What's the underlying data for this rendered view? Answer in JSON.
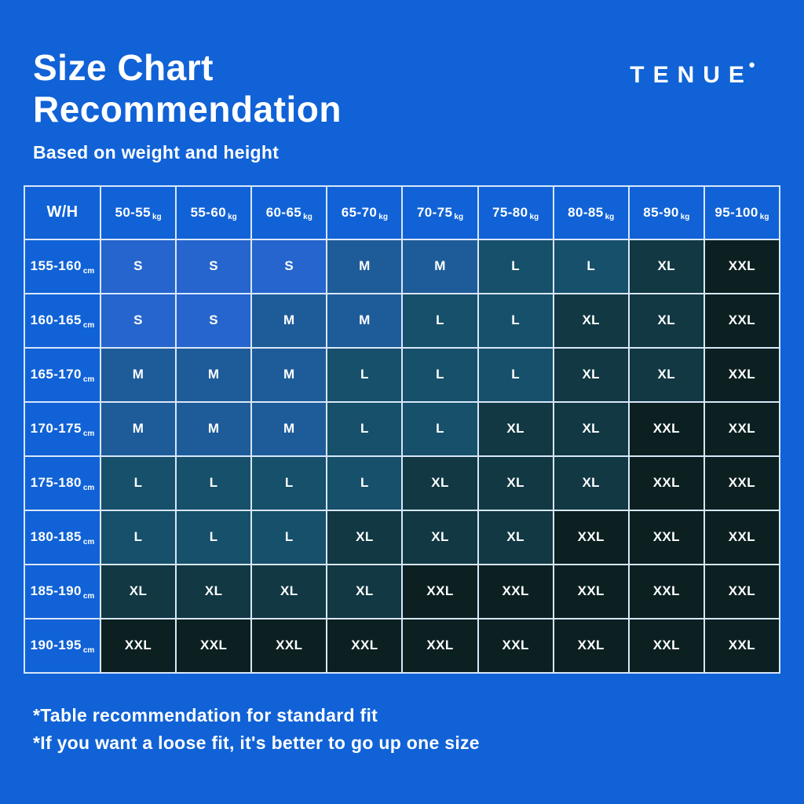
{
  "page": {
    "title_line1": "Size Chart",
    "title_line2": "Recommendation",
    "subtitle": "Based on weight and height",
    "brand": "TENUE",
    "brand_dot": "●",
    "notes": [
      "*Table recommendation for standard fit",
      "*If you want a loose fit, it's better to go up one size"
    ]
  },
  "colors": {
    "background": "#1062d6",
    "text": "#ffffff",
    "border": "#d9e7fb"
  },
  "chart_data": {
    "type": "table",
    "title": "Size Chart Recommendation",
    "subtitle": "Based on weight and height",
    "corner_label": "W/H",
    "weight_unit": "kg",
    "height_unit": "cm",
    "weight_columns": [
      "50-55",
      "55-60",
      "60-65",
      "65-70",
      "70-75",
      "75-80",
      "80-85",
      "85-90",
      "95-100"
    ],
    "height_rows": [
      "155-160",
      "160-165",
      "165-170",
      "170-175",
      "175-180",
      "180-185",
      "185-190",
      "190-195"
    ],
    "cells": [
      [
        "S",
        "S",
        "S",
        "M",
        "M",
        "L",
        "L",
        "XL",
        "XXL"
      ],
      [
        "S",
        "S",
        "M",
        "M",
        "L",
        "L",
        "XL",
        "XL",
        "XXL"
      ],
      [
        "M",
        "M",
        "M",
        "L",
        "L",
        "L",
        "XL",
        "XL",
        "XXL"
      ],
      [
        "M",
        "M",
        "M",
        "L",
        "L",
        "XL",
        "XL",
        "XXL",
        "XXL"
      ],
      [
        "L",
        "L",
        "L",
        "L",
        "XL",
        "XL",
        "XL",
        "XXL",
        "XXL"
      ],
      [
        "L",
        "L",
        "L",
        "XL",
        "XL",
        "XL",
        "XXL",
        "XXL",
        "XXL"
      ],
      [
        "XL",
        "XL",
        "XL",
        "XL",
        "XXL",
        "XXL",
        "XXL",
        "XXL",
        "XXL"
      ],
      [
        "XXL",
        "XXL",
        "XXL",
        "XXL",
        "XXL",
        "XXL",
        "XXL",
        "XXL",
        "XXL"
      ]
    ],
    "size_colors": {
      "S": "#2565cd",
      "M": "#1e5c99",
      "L": "#16506a",
      "XL": "#113843",
      "XXL": "#0c2022"
    }
  }
}
